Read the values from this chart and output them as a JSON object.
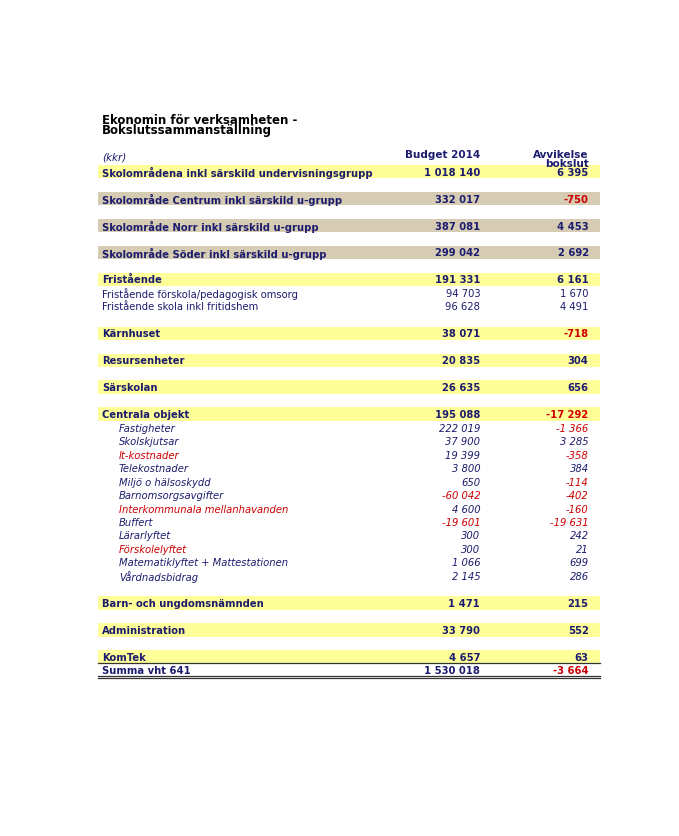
{
  "title_line1": "Ekonomin för verksamheten -",
  "title_line2": "Bokslutssammanställning",
  "col_header_left": "(kkr)",
  "col_header_mid": "Budget 2014",
  "col_header_right_line1": "Avvikelse",
  "col_header_right_line2": "bokslut",
  "rows": [
    {
      "label": "Skolområdena inkl särskild undervisningsgrupp",
      "budget": "1 018 140",
      "avvik": "6 395",
      "avvik_neg": false,
      "bg": "#ffff99",
      "bold": true,
      "italic": false,
      "indent": 0
    },
    {
      "label": "",
      "budget": "",
      "avvik": "",
      "avvik_neg": false,
      "bg": "#ffffff",
      "bold": false,
      "italic": false,
      "indent": 0
    },
    {
      "label": "Skolområde Centrum inkl särskild u-grupp",
      "budget": "332 017",
      "avvik": "-750",
      "avvik_neg": true,
      "bg": "#d6ccb4",
      "bold": true,
      "italic": false,
      "indent": 0
    },
    {
      "label": "",
      "budget": "",
      "avvik": "",
      "avvik_neg": false,
      "bg": "#ffffff",
      "bold": false,
      "italic": false,
      "indent": 0
    },
    {
      "label": "Skolområde Norr inkl särskild u-grupp",
      "budget": "387 081",
      "avvik": "4 453",
      "avvik_neg": false,
      "bg": "#d6ccb4",
      "bold": true,
      "italic": false,
      "indent": 0
    },
    {
      "label": "",
      "budget": "",
      "avvik": "",
      "avvik_neg": false,
      "bg": "#ffffff",
      "bold": false,
      "italic": false,
      "indent": 0
    },
    {
      "label": "Skolområde Söder inkl särskild u-grupp",
      "budget": "299 042",
      "avvik": "2 692",
      "avvik_neg": false,
      "bg": "#d6ccb4",
      "bold": true,
      "italic": false,
      "indent": 0
    },
    {
      "label": "",
      "budget": "",
      "avvik": "",
      "avvik_neg": false,
      "bg": "#ffffff",
      "bold": false,
      "italic": false,
      "indent": 0
    },
    {
      "label": "Fristående",
      "budget": "191 331",
      "avvik": "6 161",
      "avvik_neg": false,
      "bg": "#ffff99",
      "bold": true,
      "italic": false,
      "indent": 0
    },
    {
      "label": "Fristående förskola/pedagogisk omsorg",
      "budget": "94 703",
      "avvik": "1 670",
      "avvik_neg": false,
      "bg": "#ffffff",
      "bold": false,
      "italic": false,
      "indent": 0
    },
    {
      "label": "Fristående skola inkl fritidshem",
      "budget": "96 628",
      "avvik": "4 491",
      "avvik_neg": false,
      "bg": "#ffffff",
      "bold": false,
      "italic": false,
      "indent": 0
    },
    {
      "label": "",
      "budget": "",
      "avvik": "",
      "avvik_neg": false,
      "bg": "#ffffff",
      "bold": false,
      "italic": false,
      "indent": 0
    },
    {
      "label": "Kärnhuset",
      "budget": "38 071",
      "avvik": "-718",
      "avvik_neg": true,
      "bg": "#ffff99",
      "bold": true,
      "italic": false,
      "indent": 0
    },
    {
      "label": "",
      "budget": "",
      "avvik": "",
      "avvik_neg": false,
      "bg": "#ffffff",
      "bold": false,
      "italic": false,
      "indent": 0
    },
    {
      "label": "Resursenheter",
      "budget": "20 835",
      "avvik": "304",
      "avvik_neg": false,
      "bg": "#ffff99",
      "bold": true,
      "italic": false,
      "indent": 0
    },
    {
      "label": "",
      "budget": "",
      "avvik": "",
      "avvik_neg": false,
      "bg": "#ffffff",
      "bold": false,
      "italic": false,
      "indent": 0
    },
    {
      "label": "Särskolan",
      "budget": "26 635",
      "avvik": "656",
      "avvik_neg": false,
      "bg": "#ffff99",
      "bold": true,
      "italic": false,
      "indent": 0
    },
    {
      "label": "",
      "budget": "",
      "avvik": "",
      "avvik_neg": false,
      "bg": "#ffffff",
      "bold": false,
      "italic": false,
      "indent": 0
    },
    {
      "label": "Centrala objekt",
      "budget": "195 088",
      "avvik": "-17 292",
      "avvik_neg": true,
      "bg": "#ffff99",
      "bold": true,
      "italic": false,
      "indent": 0
    },
    {
      "label": "Fastigheter",
      "budget": "222 019",
      "avvik": "-1 366",
      "avvik_neg": true,
      "bg": "#ffffff",
      "bold": false,
      "italic": true,
      "indent": 1
    },
    {
      "label": "Skolskjutsar",
      "budget": "37 900",
      "avvik": "3 285",
      "avvik_neg": false,
      "bg": "#ffffff",
      "bold": false,
      "italic": true,
      "indent": 1
    },
    {
      "label": "It-kostnader",
      "budget": "19 399",
      "avvik": "-358",
      "avvik_neg": true,
      "bg": "#ffffff",
      "bold": false,
      "italic": true,
      "indent": 1,
      "label_red": true,
      "underline_label": true
    },
    {
      "label": "Telekostnader",
      "budget": "3 800",
      "avvik": "384",
      "avvik_neg": false,
      "bg": "#ffffff",
      "bold": false,
      "italic": true,
      "indent": 1
    },
    {
      "label": "Miljö o hälsoskydd",
      "budget": "650",
      "avvik": "-114",
      "avvik_neg": true,
      "bg": "#ffffff",
      "bold": false,
      "italic": true,
      "indent": 1
    },
    {
      "label": "Barnomsorgsavgifter",
      "budget": "-60 042",
      "avvik": "-402",
      "avvik_neg": true,
      "bg": "#ffffff",
      "bold": false,
      "italic": true,
      "indent": 1,
      "budget_neg": true
    },
    {
      "label": "Interkommunala mellanhavanden",
      "budget": "4 600",
      "avvik": "-160",
      "avvik_neg": true,
      "bg": "#ffffff",
      "bold": false,
      "italic": true,
      "indent": 1,
      "label_red": true
    },
    {
      "label": "Buffert",
      "budget": "-19 601",
      "avvik": "-19 631",
      "avvik_neg": true,
      "bg": "#ffffff",
      "bold": false,
      "italic": true,
      "indent": 1,
      "budget_neg": true
    },
    {
      "label": "Lärarlyftet",
      "budget": "300",
      "avvik": "242",
      "avvik_neg": false,
      "bg": "#ffffff",
      "bold": false,
      "italic": true,
      "indent": 1
    },
    {
      "label": "Förskolelyftet",
      "budget": "300",
      "avvik": "21",
      "avvik_neg": false,
      "bg": "#ffffff",
      "bold": false,
      "italic": true,
      "indent": 1,
      "label_red": true
    },
    {
      "label": "Matematiklyftet + Mattestationen",
      "budget": "1 066",
      "avvik": "699",
      "avvik_neg": false,
      "bg": "#ffffff",
      "bold": false,
      "italic": true,
      "indent": 1
    },
    {
      "label": "Vårdnadsbidrag",
      "budget": "2 145",
      "avvik": "286",
      "avvik_neg": false,
      "bg": "#ffffff",
      "bold": false,
      "italic": true,
      "indent": 1
    },
    {
      "label": "",
      "budget": "",
      "avvik": "",
      "avvik_neg": false,
      "bg": "#ffffff",
      "bold": false,
      "italic": false,
      "indent": 0
    },
    {
      "label": "Barn- och ungdomsnämnden",
      "budget": "1 471",
      "avvik": "215",
      "avvik_neg": false,
      "bg": "#ffff99",
      "bold": true,
      "italic": false,
      "indent": 0
    },
    {
      "label": "",
      "budget": "",
      "avvik": "",
      "avvik_neg": false,
      "bg": "#ffffff",
      "bold": false,
      "italic": false,
      "indent": 0
    },
    {
      "label": "Administration",
      "budget": "33 790",
      "avvik": "552",
      "avvik_neg": false,
      "bg": "#ffff99",
      "bold": true,
      "italic": false,
      "indent": 0
    },
    {
      "label": "",
      "budget": "",
      "avvik": "",
      "avvik_neg": false,
      "bg": "#ffffff",
      "bold": false,
      "italic": false,
      "indent": 0
    },
    {
      "label": "KomTek",
      "budget": "4 657",
      "avvik": "63",
      "avvik_neg": false,
      "bg": "#ffff99",
      "bold": true,
      "italic": false,
      "indent": 0,
      "row_underline": true
    },
    {
      "label": "Summa vht 641",
      "budget": "1 530 018",
      "avvik": "-3 664",
      "avvik_neg": true,
      "bg": "#ffffff",
      "bold": true,
      "italic": false,
      "indent": 0,
      "row_double_underline": true
    }
  ],
  "text_color_normal": "#1c1c6e",
  "text_color_neg": "#cc0000",
  "text_color_red_label": "#cc0000",
  "header_color": "#1c1c6e",
  "title_color": "#000000",
  "font_size_title": 8.5,
  "font_size_header": 7.5,
  "font_size_row": 7.2
}
